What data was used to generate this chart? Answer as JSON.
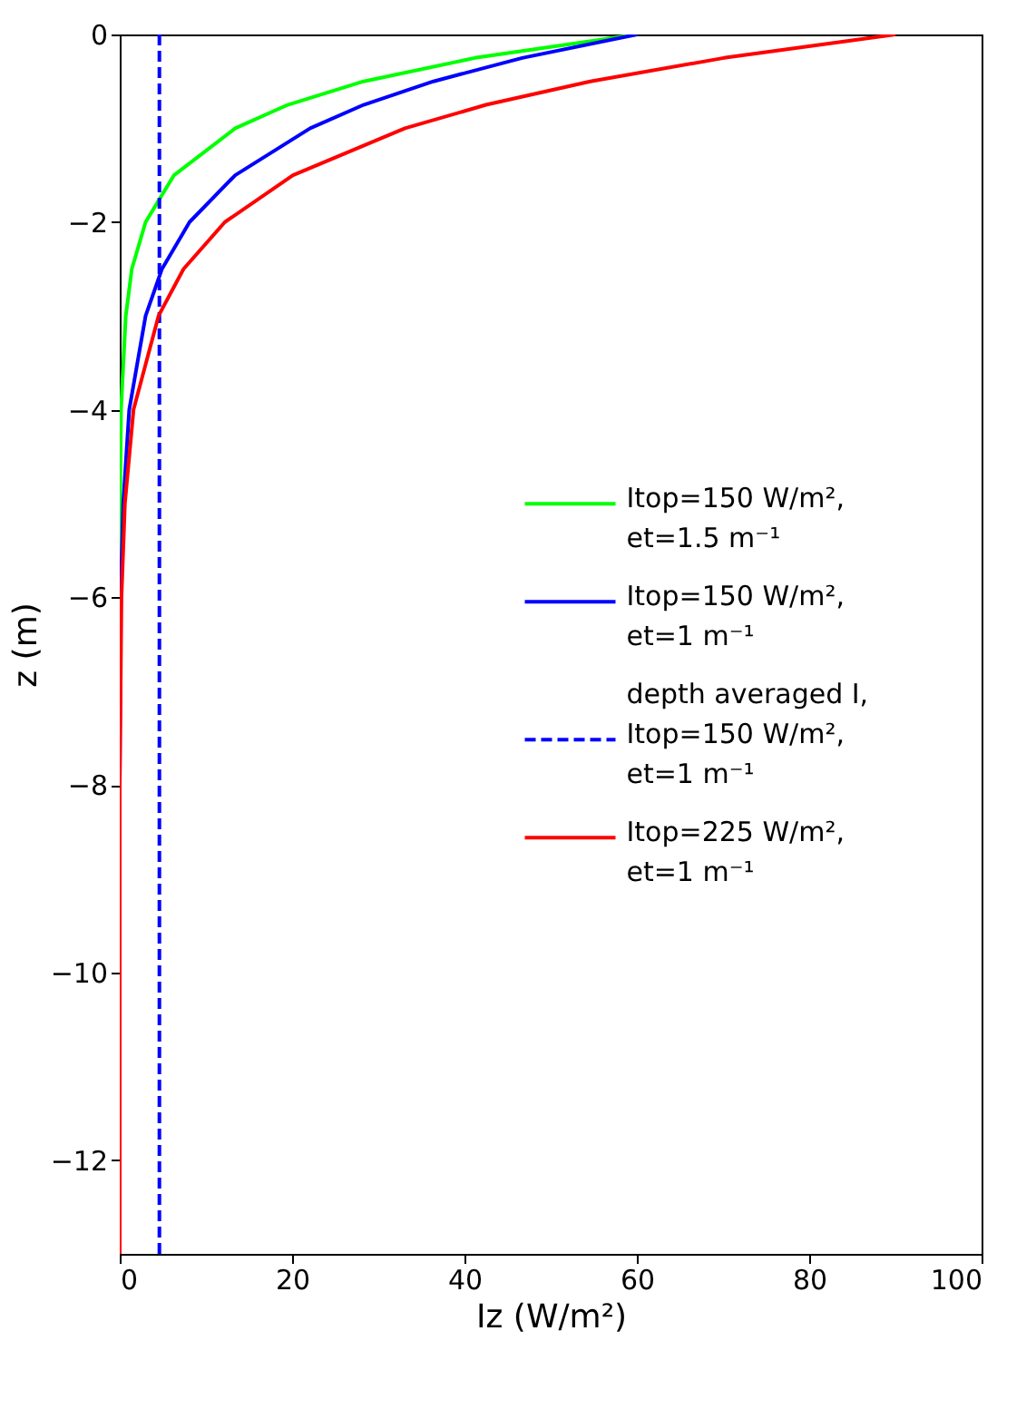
{
  "chart_data": {
    "type": "line",
    "xlabel": "Iz (W/m²)",
    "ylabel": "z (m)",
    "xlim": [
      0,
      100
    ],
    "ylim": [
      -13,
      0
    ],
    "xticks": [
      0,
      20,
      40,
      60,
      80,
      100
    ],
    "yticks": [
      -12,
      -10,
      -8,
      -6,
      -4,
      -2,
      0
    ],
    "legend": "right",
    "series": [
      {
        "name": "Itop=150 W/m², et=1.5 m⁻¹",
        "color": "#00ff00",
        "line_style": "solid",
        "x": [
          60,
          41.2,
          28.3,
          19.5,
          13.4,
          6.3,
          3.0,
          1.4,
          0.7,
          0.15,
          0.03,
          0
        ],
        "values": [
          0,
          -0.25,
          -0.5,
          -0.75,
          -1,
          -1.5,
          -2,
          -2.5,
          -3,
          -4,
          -5,
          -6
        ]
      },
      {
        "name": "Itop=150 W/m², et=1 m⁻¹",
        "color": "#0000ff",
        "line_style": "solid",
        "x": [
          60,
          46.7,
          36.4,
          28.3,
          22.1,
          13.4,
          8.1,
          4.9,
          3.0,
          1.1,
          0.4,
          0.1,
          0
        ],
        "values": [
          0,
          -0.25,
          -0.5,
          -0.75,
          -1,
          -1.5,
          -2,
          -2.5,
          -3,
          -4,
          -5,
          -6,
          -8
        ]
      },
      {
        "name": "depth averaged I, Itop=150 W/m², et=1 m⁻¹",
        "color": "#0000ff",
        "line_style": "dashed",
        "x": [
          4.6,
          4.6
        ],
        "values": [
          0,
          -13
        ]
      },
      {
        "name": "Itop=225 W/m², et=1 m⁻¹",
        "color": "#ff0000",
        "line_style": "solid",
        "x": [
          90,
          70.1,
          54.6,
          42.5,
          33.1,
          20.1,
          12.2,
          7.4,
          4.5,
          1.6,
          0.6,
          0.2,
          0,
          0
        ],
        "values": [
          0,
          -0.25,
          -0.5,
          -0.75,
          -1,
          -1.5,
          -2,
          -2.5,
          -3,
          -4,
          -5,
          -6,
          -8,
          -13
        ]
      }
    ]
  }
}
